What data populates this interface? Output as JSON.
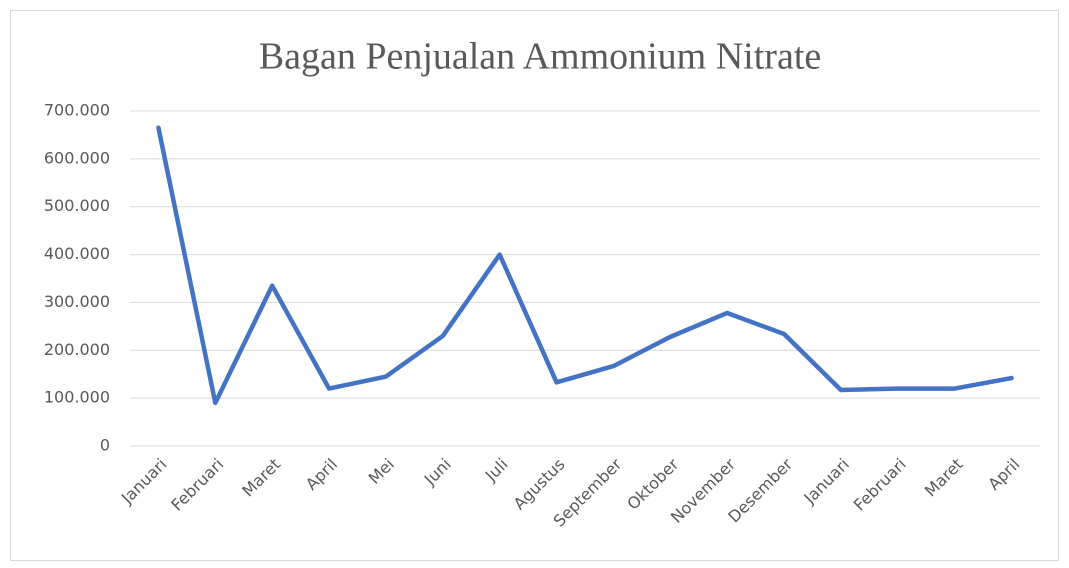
{
  "chart_data": {
    "type": "line",
    "title": "Bagan Penjualan Ammonium Nitrate",
    "categories": [
      "Januari",
      "Februari",
      "Maret",
      "April",
      "Mei",
      "Juni",
      "Juli",
      "Agustus",
      "September",
      "Oktober",
      "November",
      "Desember",
      "Januari",
      "Februari",
      "Maret",
      "April"
    ],
    "values": [
      665000,
      90000,
      335000,
      120000,
      145000,
      230000,
      400000,
      133000,
      167000,
      228000,
      278000,
      234000,
      117000,
      120000,
      120000,
      142000
    ],
    "color": "#4472c4",
    "ylim": [
      0,
      700000
    ],
    "yticks": [
      0,
      {
        "value": 100000,
        "label": "100.000"
      },
      {
        "value": 200000,
        "label": "200.000"
      },
      {
        "value": 300000,
        "label": "300.000"
      },
      {
        "value": 400000,
        "label": "400.000"
      },
      {
        "value": 500000,
        "label": "500.000"
      },
      {
        "value": 600000,
        "label": "600.000"
      },
      {
        "value": 700000,
        "label": "700.000"
      }
    ],
    "grid": true
  }
}
